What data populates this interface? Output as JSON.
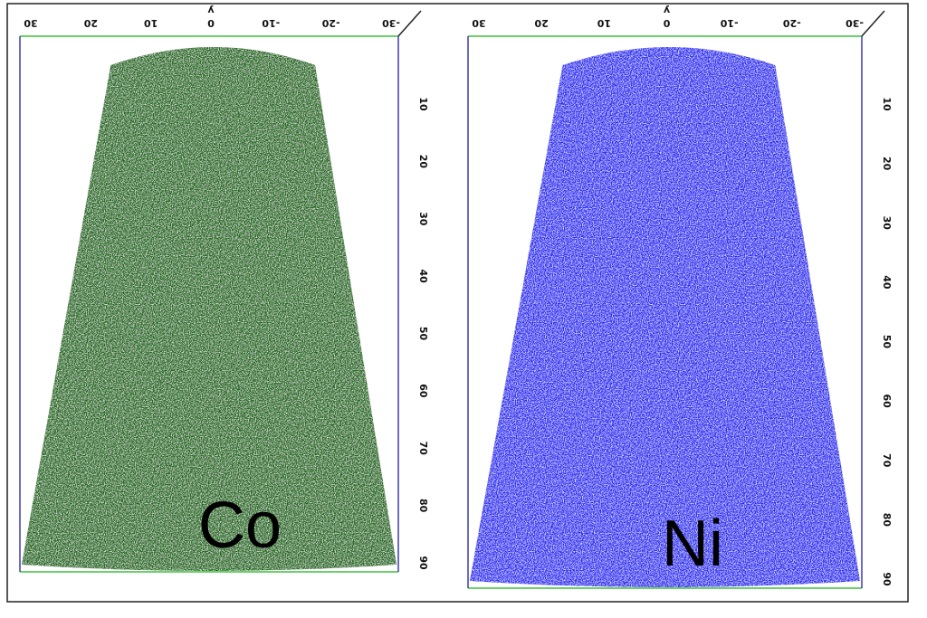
{
  "panels": [
    {
      "label": "Co",
      "color": "#1f6b14"
    },
    {
      "label": "Ni",
      "color": "#2a2cf2"
    }
  ],
  "axis_top": {
    "title": "y",
    "ticks": [
      "30",
      "20",
      "10",
      "0",
      "-10",
      "-20",
      "-30"
    ]
  },
  "axis_right": {
    "ticks": [
      "10",
      "20",
      "30",
      "40",
      "50",
      "60",
      "70",
      "80",
      "90"
    ]
  }
}
